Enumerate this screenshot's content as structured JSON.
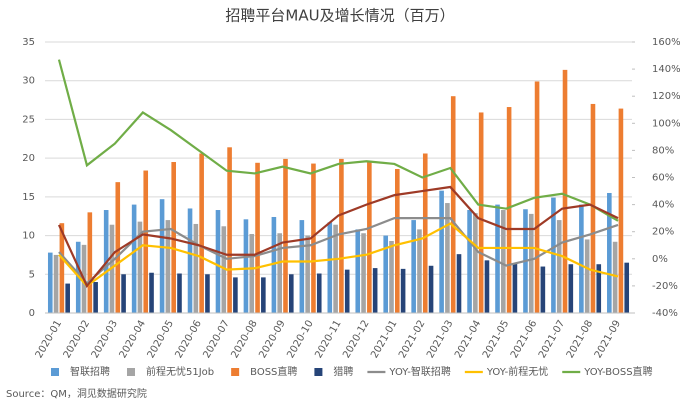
{
  "chart_data": {
    "type": "bar",
    "title": "招聘平台MAU及增长情况（百万）",
    "source": "Source：QM，洞见数据研究院",
    "categories": [
      "2020-01",
      "2020-02",
      "2020-03",
      "2020-04",
      "2020-05",
      "2020-06",
      "2020-07",
      "2020-08",
      "2020-09",
      "2020-10",
      "2020-11",
      "2020-12",
      "2021-01",
      "2021-02",
      "2021-03",
      "2021-04",
      "2021-05",
      "2021-06",
      "2021-07",
      "2021-08",
      "2021-09"
    ],
    "series": [
      {
        "name": "智联招聘",
        "color": "#5b9bd5",
        "values": [
          7.8,
          9.2,
          13.3,
          14.0,
          14.7,
          13.5,
          13.3,
          12.1,
          12.4,
          12.0,
          11.7,
          10.8,
          10.0,
          12.0,
          15.8,
          13.3,
          14.0,
          13.4,
          14.9,
          14.0,
          15.5
        ]
      },
      {
        "name": "前程无忧51Job",
        "color": "#a5a5a5",
        "values": [
          7.5,
          8.8,
          11.4,
          11.8,
          12.0,
          11.5,
          11.2,
          10.2,
          10.3,
          10.0,
          11.4,
          10.3,
          9.3,
          10.8,
          14.2,
          12.9,
          13.3,
          12.8,
          12.0,
          9.5,
          9.2
        ]
      },
      {
        "name": "BOSS直聘",
        "color": "#ed7d31",
        "values": [
          11.6,
          13.0,
          16.9,
          18.4,
          19.5,
          20.6,
          21.4,
          19.4,
          19.9,
          19.3,
          19.9,
          19.5,
          18.6,
          20.6,
          28.0,
          25.9,
          26.6,
          29.9,
          31.4,
          27.0,
          26.4
        ]
      },
      {
        "name": "猎聘",
        "color": "#264478",
        "values": [
          3.8,
          4.0,
          5.0,
          5.2,
          5.1,
          5.0,
          4.6,
          4.6,
          5.0,
          5.1,
          5.6,
          5.8,
          5.7,
          6.1,
          7.6,
          6.8,
          6.4,
          6.0,
          6.3,
          6.3,
          6.5
        ]
      },
      {
        "name": "YOY-智联招聘",
        "color": "#8c8c8c",
        "axis": "y2",
        "values": [
          5,
          -18,
          0,
          20,
          22,
          10,
          0,
          2,
          8,
          10,
          18,
          22,
          30,
          30,
          30,
          5,
          -5,
          0,
          12,
          18,
          25
        ]
      },
      {
        "name": "YOY-前程无忧",
        "color": "#ffc000",
        "axis": "y2",
        "values": [
          3,
          -20,
          -5,
          10,
          8,
          2,
          -8,
          -7,
          -2,
          -2,
          0,
          3,
          10,
          15,
          26,
          8,
          8,
          8,
          2,
          -8,
          -13
        ]
      },
      {
        "name": "YOY-BOSS直聘",
        "color": "#70ad47",
        "axis": "y2",
        "values": [
          147,
          69,
          85,
          108,
          95,
          80,
          65,
          63,
          68,
          63,
          70,
          72,
          70,
          60,
          67,
          40,
          37,
          45,
          48,
          40,
          28
        ]
      },
      {
        "color": "#9e3a26",
        "axis": "y2",
        "values": [
          25,
          -20,
          5,
          18,
          15,
          10,
          3,
          3,
          12,
          15,
          32,
          40,
          47,
          50,
          53,
          30,
          22,
          22,
          37,
          40,
          30
        ]
      }
    ],
    "ylim": [
      0,
      35
    ],
    "yticks": [
      0,
      5,
      10,
      15,
      20,
      25,
      30,
      35
    ],
    "y2lim": [
      -40,
      160
    ],
    "y2ticks": [
      {
        "value": -40,
        "label": "-40%"
      },
      {
        "value": -20,
        "label": "-20%"
      },
      {
        "value": 0,
        "label": "0%"
      },
      {
        "value": 20,
        "label": "20%"
      },
      {
        "value": 40,
        "label": "40%"
      },
      {
        "value": 60,
        "label": "60%"
      },
      {
        "value": 80,
        "label": "80%"
      },
      {
        "value": 100,
        "label": "100%"
      },
      {
        "value": 120,
        "label": "120%"
      },
      {
        "value": 140,
        "label": "140%"
      },
      {
        "value": 160,
        "label": "160%"
      }
    ],
    "grid": true
  }
}
